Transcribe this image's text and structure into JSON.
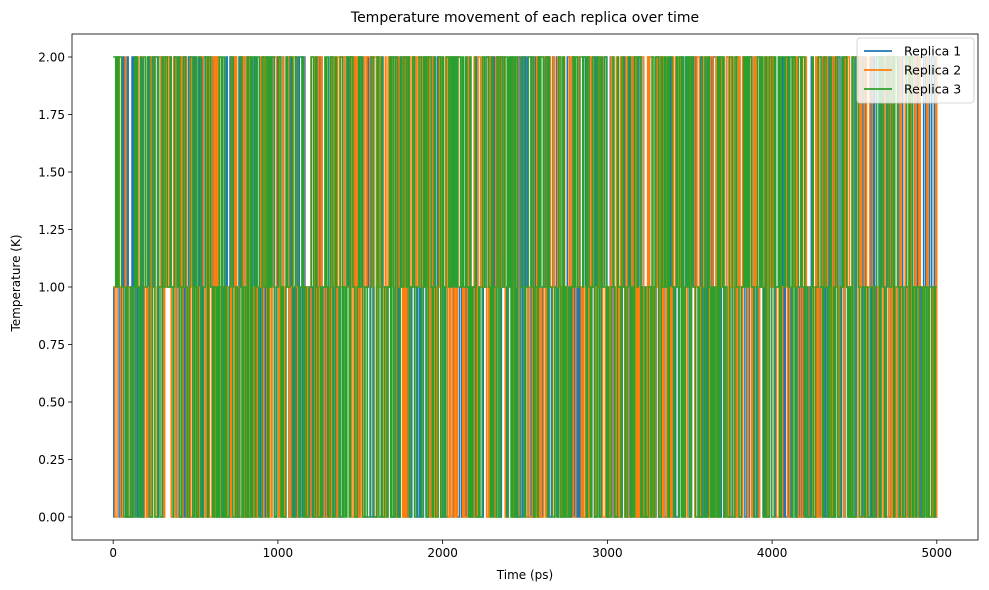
{
  "chart_data": {
    "type": "line",
    "title": "Temperature movement of each replica over time",
    "xlabel": "Time (ps)",
    "ylabel": "Temperature (K)",
    "xlim": [
      -250,
      5250
    ],
    "ylim": [
      -0.1,
      2.1
    ],
    "xticks": [
      0,
      1000,
      2000,
      3000,
      4000,
      5000
    ],
    "xtick_labels": [
      "0",
      "1000",
      "2000",
      "3000",
      "4000",
      "5000"
    ],
    "yticks": [
      0.0,
      0.25,
      0.5,
      0.75,
      1.0,
      1.25,
      1.5,
      1.75,
      2.0
    ],
    "ytick_labels": [
      "0.00",
      "0.25",
      "0.50",
      "0.75",
      "1.00",
      "1.25",
      "1.50",
      "1.75",
      "2.00"
    ],
    "grid": false,
    "legend_position": "top-right",
    "levels": [
      0,
      1,
      2
    ],
    "time_range": [
      0,
      4999
    ],
    "series": [
      {
        "name": "Replica 1",
        "color": "#1f77b4",
        "start_value": 0,
        "end_value": 2
      },
      {
        "name": "Replica 2",
        "color": "#ff7f0e",
        "start_value": 1,
        "end_value": 0
      },
      {
        "name": "Replica 3",
        "color": "#2ca02c",
        "start_value": 2,
        "end_value": 1
      }
    ]
  }
}
